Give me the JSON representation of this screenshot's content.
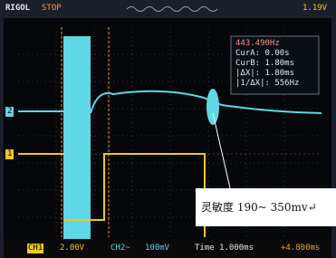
{
  "header": {
    "brand": "RIGOL",
    "status": "STOP",
    "trigger_level": "1.19V"
  },
  "cursor_panel": {
    "lines": [
      "443.490Hz",
      "CurA: 0.00s",
      "CurB: 1.80ms",
      "|ΔX|: 1.80ms",
      "|1/ΔX|: 556Hz"
    ]
  },
  "channel_markers": {
    "ch2": "2",
    "ch1": "1"
  },
  "footer": {
    "ch1_label": "CH1",
    "ch1_scale": "2.00V",
    "ch2_label": "CH2~",
    "ch2_scale": "100mV",
    "time": "Time 1.000ms",
    "offset": "+4.800ms"
  },
  "annotation": "灵敏度 190~ 350mv↵"
}
